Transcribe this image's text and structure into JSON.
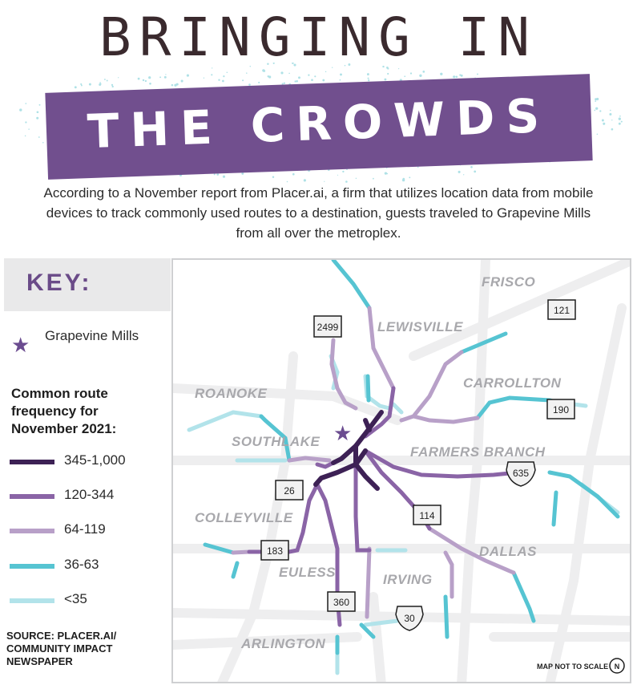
{
  "title": {
    "line1": "BRINGING IN",
    "line2": "THE CROWDS"
  },
  "intro": "According to a November report from Placer.ai, a firm that utilizes location data from mobile devices to track commonly used routes to a destination, guests traveled to Grapevine Mills from all over the metroplex.",
  "key": {
    "heading": "KEY:",
    "star_label": "Grapevine Mills",
    "star_icon": "star-icon",
    "frequency_title": "Common route frequency for November 2021:",
    "legend": [
      {
        "label": "345-1,000",
        "color": "#3d2155"
      },
      {
        "label": "120-344",
        "color": "#8a64a6"
      },
      {
        "label": "64-119",
        "color": "#b8a0c8"
      },
      {
        "label": "36-63",
        "color": "#56c4d2"
      },
      {
        "label": "<35",
        "color": "#b2e3ea"
      }
    ]
  },
  "source": "SOURCE: PLACER.AI/ COMMUNITY IMPACT NEWSPAPER",
  "map": {
    "cities": [
      "FRISCO",
      "LEWISVILLE",
      "CARROLLTON",
      "ROANOKE",
      "SOUTHLAKE",
      "FARMERS BRANCH",
      "COLLEYVILLE",
      "DALLAS",
      "EULESS",
      "IRVING",
      "ARLINGTON"
    ],
    "shields": [
      "2499",
      "121",
      "190",
      "635",
      "26",
      "114",
      "183",
      "360",
      "30"
    ],
    "note": "MAP NOT TO SCALE",
    "north": "N"
  },
  "colors": {
    "purple": "#714f8e",
    "dark": "#3d2155",
    "road": "#efefef"
  }
}
